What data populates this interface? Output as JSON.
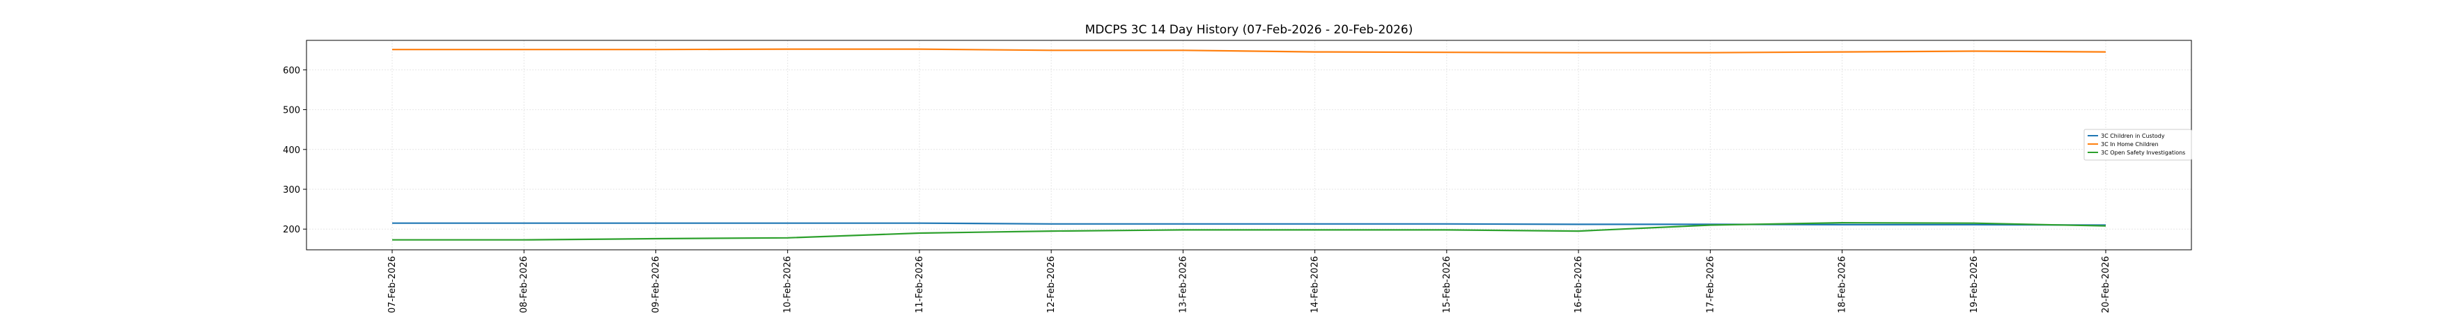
{
  "chart_data": {
    "type": "line",
    "title": "MDCPS 3C 14 Day History (07-Feb-2026 - 20-Feb-2026)",
    "xlabel": "",
    "ylabel": "",
    "categories": [
      "07-Feb-2026",
      "08-Feb-2026",
      "09-Feb-2026",
      "10-Feb-2026",
      "11-Feb-2026",
      "12-Feb-2026",
      "13-Feb-2026",
      "14-Feb-2026",
      "15-Feb-2026",
      "16-Feb-2026",
      "17-Feb-2026",
      "18-Feb-2026",
      "19-Feb-2026",
      "20-Feb-2026"
    ],
    "yticks": [
      200,
      300,
      400,
      500,
      600
    ],
    "ylim": [
      148,
      674
    ],
    "grid": true,
    "legend_position": "center-right",
    "series": [
      {
        "name": "3C Children in Custody",
        "color": "#1f77b4",
        "values": [
          215,
          215,
          215,
          215,
          215,
          213,
          213,
          213,
          213,
          212,
          212,
          211,
          211,
          210
        ]
      },
      {
        "name": "3C In Home Children",
        "color": "#ff7f0e",
        "values": [
          651,
          651,
          651,
          652,
          652,
          649,
          649,
          645,
          644,
          643,
          643,
          645,
          647,
          645
        ]
      },
      {
        "name": "3C Open Safety Investigations",
        "color": "#2ca02c",
        "values": [
          173,
          173,
          176,
          178,
          190,
          195,
          198,
          198,
          198,
          195,
          210,
          216,
          215,
          208
        ]
      }
    ]
  }
}
